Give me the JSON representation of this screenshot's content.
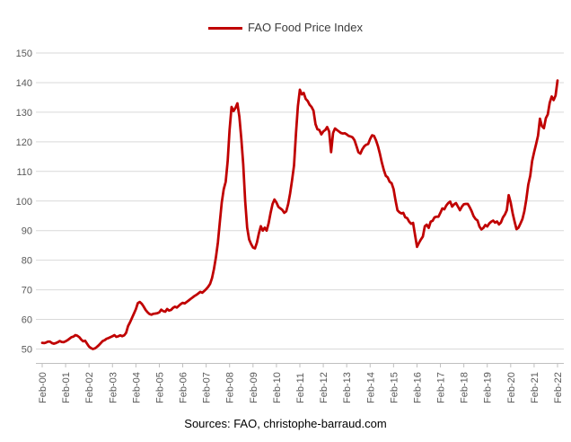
{
  "legend": {
    "label": "FAO Food Price Index"
  },
  "footer": {
    "text": "Sources: FAO, christophe-barraud.com"
  },
  "colors": {
    "line": "#C00000",
    "grid": "#D9D9D9",
    "axis_line": "#BFBFBF",
    "axis_text": "#595959",
    "legend_text": "#3b3b3b",
    "background": "#FFFFFF"
  },
  "chart_data": {
    "type": "line",
    "title": "",
    "xlabel": "",
    "ylabel": "",
    "legend_entries": [
      "FAO Food Price Index"
    ],
    "legend_position": "top-center",
    "grid": true,
    "frequency": "monthly",
    "start_month": "Feb-2000",
    "end_month": "Feb-2022",
    "ylim": [
      45,
      152
    ],
    "y_ticks": [
      50,
      60,
      70,
      80,
      90,
      100,
      110,
      120,
      130,
      140,
      150
    ],
    "x_tick_labels": [
      "Feb-00",
      "Feb-01",
      "Feb-02",
      "Feb-03",
      "Feb-04",
      "Feb-05",
      "Feb-06",
      "Feb-07",
      "Feb-08",
      "Feb-09",
      "Feb-10",
      "Feb-11",
      "Feb-12",
      "Feb-13",
      "Feb-14",
      "Feb-15",
      "Feb-16",
      "Feb-17",
      "Feb-18",
      "Feb-19",
      "Feb-20",
      "Feb-21",
      "Feb-22"
    ],
    "x_tick_month_interval": 12,
    "values": [
      52.1,
      52.0,
      52.2,
      52.5,
      52.5,
      52.0,
      51.8,
      52.0,
      52.3,
      52.7,
      52.4,
      52.3,
      52.6,
      53.0,
      53.5,
      54.0,
      54.2,
      54.7,
      54.5,
      54.0,
      53.2,
      52.6,
      52.8,
      51.8,
      50.8,
      50.3,
      50.0,
      50.2,
      50.7,
      51.3,
      52.0,
      52.7,
      53.0,
      53.5,
      53.7,
      54.0,
      54.3,
      54.7,
      54.1,
      54.3,
      54.6,
      54.3,
      54.6,
      55.5,
      57.8,
      59.0,
      60.5,
      62.0,
      63.5,
      65.5,
      65.9,
      65.3,
      64.3,
      63.2,
      62.4,
      61.8,
      61.6,
      61.9,
      62.0,
      62.1,
      62.4,
      63.3,
      62.8,
      62.6,
      63.5,
      63.0,
      63.2,
      63.9,
      64.3,
      64.0,
      64.6,
      65.2,
      65.6,
      65.4,
      65.9,
      66.4,
      66.9,
      67.4,
      67.9,
      68.3,
      68.8,
      69.3,
      69.0,
      69.6,
      70.2,
      71.0,
      72.0,
      74.0,
      77.0,
      81.0,
      86.0,
      93.0,
      99.5,
      104.0,
      106.5,
      113.5,
      124.0,
      131.8,
      130.4,
      131.5,
      133.0,
      128.5,
      121.0,
      112.5,
      100.0,
      91.0,
      87.0,
      85.5,
      84.3,
      84.0,
      86.0,
      89.0,
      91.5,
      90.0,
      91.0,
      90.0,
      92.5,
      96.0,
      99.0,
      100.5,
      99.5,
      98.0,
      97.5,
      97.0,
      96.0,
      96.5,
      99.0,
      102.5,
      107.0,
      112.0,
      123.0,
      132.0,
      137.6,
      136.0,
      136.5,
      134.5,
      133.8,
      132.5,
      131.8,
      130.5,
      126.0,
      124.2,
      124.0,
      122.5,
      123.5,
      124.0,
      125.0,
      123.5,
      116.5,
      123.0,
      124.5,
      124.0,
      123.5,
      123.0,
      122.8,
      122.9,
      122.5,
      122.0,
      121.8,
      121.5,
      120.5,
      118.5,
      116.5,
      116.0,
      117.5,
      118.5,
      119.0,
      119.3,
      121.0,
      122.2,
      122.0,
      120.5,
      118.5,
      116.0,
      113.0,
      110.5,
      108.5,
      108.0,
      106.5,
      106.0,
      104.0,
      100.3,
      96.9,
      96.2,
      95.8,
      96.0,
      94.5,
      94.2,
      93.0,
      92.3,
      92.6,
      88.5,
      84.5,
      85.8,
      87.0,
      88.0,
      91.5,
      92.0,
      90.9,
      93.0,
      93.3,
      94.5,
      94.7,
      94.7,
      96.0,
      97.5,
      97.2,
      98.5,
      99.3,
      99.8,
      98.1,
      98.9,
      99.3,
      98.1,
      96.9,
      98.1,
      98.9,
      99.0,
      99.0,
      97.9,
      96.6,
      94.9,
      93.9,
      93.4,
      91.4,
      90.4,
      90.9,
      91.9,
      91.4,
      92.4,
      93.0,
      93.4,
      92.7,
      93.1,
      92.1,
      92.7,
      94.4,
      95.4,
      96.9,
      102.0,
      99.5,
      95.9,
      93.0,
      90.5,
      91.0,
      92.4,
      93.9,
      96.5,
      100.5,
      105.5,
      108.5,
      113.5,
      116.5,
      119.2,
      122.1,
      127.8,
      125.3,
      124.6,
      128.0,
      129.2,
      133.2,
      135.3,
      134.1,
      135.6,
      140.7
    ]
  }
}
